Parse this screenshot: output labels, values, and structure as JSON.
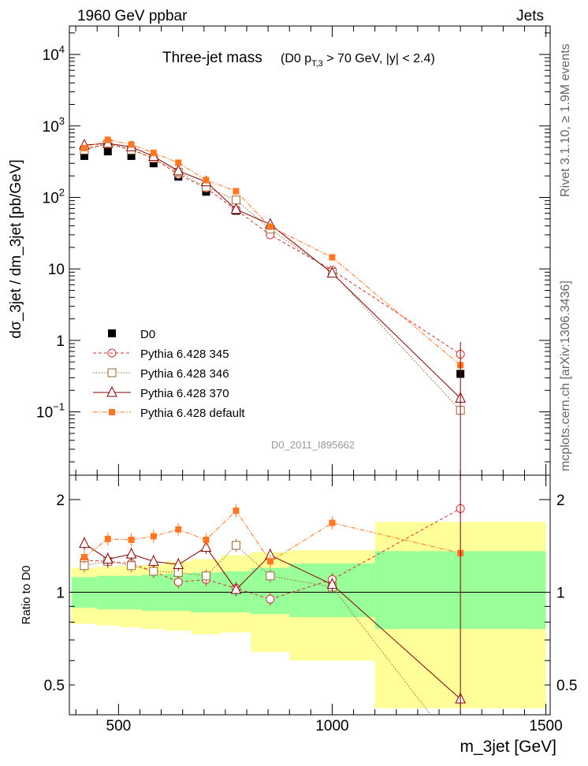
{
  "header": {
    "left": "1960 GeV ppbar",
    "right": "Jets"
  },
  "side_labels": {
    "rivet": "Rivet 3.1.10, ≥ 1.9M events",
    "mcplots": "mcplots.cern.ch [arXiv:1306.3436]"
  },
  "chart_data": [
    {
      "panel": "main",
      "type": "line",
      "title_main": "Three-jet mass",
      "title_cut_pre": "(D0 p",
      "title_cut_sub": "T,3",
      "title_cut_post": " > 70 GeV, |y| < 2.4)",
      "watermark": "D0_2011_I895662",
      "ylabel": "dσ_3jet / dm_3jet [pb/GeV]",
      "yscale": "log",
      "ylim": [
        0.013,
        25000
      ],
      "xlim": [
        385,
        1510
      ],
      "y_tick_labels": [
        {
          "value": 10000,
          "base": "10",
          "exp": "4"
        },
        {
          "value": 1000,
          "base": "10",
          "exp": "3"
        },
        {
          "value": 100,
          "base": "10",
          "exp": "2"
        },
        {
          "value": 10,
          "base": "10",
          "exp": ""
        },
        {
          "value": 1,
          "base": "1",
          "exp": ""
        },
        {
          "value": 0.1,
          "base": "10",
          "exp": "−1"
        }
      ],
      "legend_position": "left, middle",
      "x": [
        420,
        475,
        530,
        582,
        640,
        705,
        775,
        855,
        1000,
        1300
      ],
      "series": [
        {
          "name": "D0",
          "style": "data",
          "color": "#000000",
          "values": [
            380,
            440,
            380,
            300,
            195,
            120,
            65,
            32,
            8.7,
            0.34
          ]
        },
        {
          "name": "Pythia 6.428 345",
          "style": "circle-dashed",
          "color": "#cc3333",
          "values": [
            480,
            560,
            470,
            350,
            210,
            135,
            67,
            30,
            9.6,
            0.64
          ]
        },
        {
          "name": "Pythia 6.428 346",
          "style": "square-dotted",
          "color": "#996633",
          "values": [
            460,
            560,
            460,
            355,
            225,
            140,
            92,
            36,
            9.0,
            0.105
          ]
        },
        {
          "name": "Pythia 6.428 370",
          "style": "triangle-solid",
          "color": "#800000",
          "values": [
            540,
            570,
            510,
            375,
            235,
            165,
            68,
            42,
            8.7,
            0.155
          ]
        },
        {
          "name": "Pythia 6.428 default",
          "style": "filled-square-dashdot",
          "color": "#ff7722",
          "values": [
            490,
            640,
            550,
            420,
            305,
            175,
            122,
            39,
            14.5,
            0.45
          ]
        }
      ]
    },
    {
      "panel": "ratio",
      "type": "line",
      "ylabel": "Ratio to D0",
      "xlabel": "m_3jet [GeV]",
      "yscale": "log",
      "ylim": [
        0.4,
        2.4
      ],
      "xlim": [
        385,
        1510
      ],
      "y_ticks": [
        {
          "value": 2,
          "label": "2"
        },
        {
          "value": 1,
          "label": "1"
        },
        {
          "value": 0.5,
          "label": "0.5"
        }
      ],
      "x_ticks": [
        {
          "value": 500,
          "label": "500"
        },
        {
          "value": 1000,
          "label": "1000"
        },
        {
          "value": 1500,
          "label": "1500"
        }
      ],
      "bands": {
        "bins": [
          {
            "xlo": 390,
            "xhi": 450,
            "inner_lo": 0.89,
            "inner_hi": 1.12,
            "outer_lo": 0.79,
            "outer_hi": 1.2
          },
          {
            "xlo": 450,
            "xhi": 500,
            "inner_lo": 0.88,
            "inner_hi": 1.13,
            "outer_lo": 0.78,
            "outer_hi": 1.21
          },
          {
            "xlo": 500,
            "xhi": 555,
            "inner_lo": 0.88,
            "inner_hi": 1.13,
            "outer_lo": 0.77,
            "outer_hi": 1.22
          },
          {
            "xlo": 555,
            "xhi": 610,
            "inner_lo": 0.87,
            "inner_hi": 1.14,
            "outer_lo": 0.76,
            "outer_hi": 1.23
          },
          {
            "xlo": 610,
            "xhi": 670,
            "inner_lo": 0.87,
            "inner_hi": 1.15,
            "outer_lo": 0.75,
            "outer_hi": 1.26
          },
          {
            "xlo": 670,
            "xhi": 740,
            "inner_lo": 0.86,
            "inner_hi": 1.16,
            "outer_lo": 0.73,
            "outer_hi": 1.28
          },
          {
            "xlo": 740,
            "xhi": 810,
            "inner_lo": 0.86,
            "inner_hi": 1.17,
            "outer_lo": 0.74,
            "outer_hi": 1.32
          },
          {
            "xlo": 810,
            "xhi": 900,
            "inner_lo": 0.85,
            "inner_hi": 1.2,
            "outer_lo": 0.64,
            "outer_hi": 1.35
          },
          {
            "xlo": 900,
            "xhi": 1100,
            "inner_lo": 0.83,
            "inner_hi": 1.24,
            "outer_lo": 0.6,
            "outer_hi": 1.37
          },
          {
            "xlo": 1100,
            "xhi": 1500,
            "inner_lo": 0.76,
            "inner_hi": 1.36,
            "outer_lo": 0.42,
            "outer_hi": 1.69
          }
        ],
        "inner_color": "#99ff99",
        "outer_color": "#ffff99"
      },
      "series": [
        {
          "name": "Pythia 6.428 345",
          "style": "circle-dashed",
          "color": "#cc3333",
          "values": [
            1.27,
            1.26,
            1.24,
            1.17,
            1.08,
            1.1,
            1.03,
            0.95,
            1.1,
            1.87
          ]
        },
        {
          "name": "Pythia 6.428 346",
          "style": "square-dotted",
          "color": "#996633",
          "values": [
            1.22,
            1.26,
            1.22,
            1.17,
            1.16,
            1.13,
            1.42,
            1.13,
            1.04,
            0.3
          ]
        },
        {
          "name": "Pythia 6.428 370",
          "style": "triangle-solid",
          "color": "#800000",
          "values": [
            1.44,
            1.28,
            1.33,
            1.26,
            1.23,
            1.4,
            1.02,
            1.32,
            1.06,
            0.45
          ]
        },
        {
          "name": "Pythia 6.428 default",
          "style": "filled-square-dashdot",
          "color": "#ff7722",
          "values": [
            1.3,
            1.49,
            1.48,
            1.52,
            1.6,
            1.48,
            1.84,
            1.26,
            1.68,
            1.34
          ]
        }
      ]
    }
  ]
}
